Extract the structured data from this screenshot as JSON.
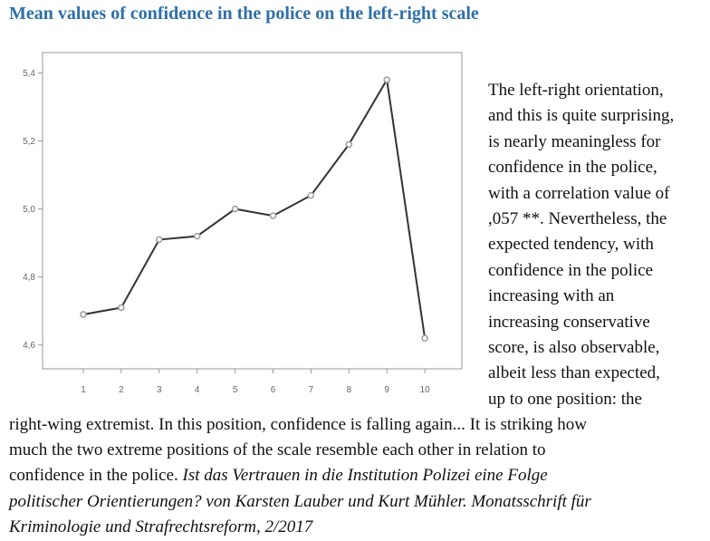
{
  "title": "Mean values of confidence in the police on the left-right scale",
  "chart_data": {
    "type": "line",
    "categories": [
      "1",
      "2",
      "3",
      "4",
      "5",
      "6",
      "7",
      "8",
      "9",
      "10"
    ],
    "values": [
      4.69,
      4.71,
      4.91,
      4.92,
      5.0,
      4.98,
      5.04,
      5.19,
      5.38,
      4.62
    ],
    "yticks": [
      "4,6",
      "4,8",
      "5,0",
      "5,2",
      "5,4"
    ],
    "ytick_values": [
      4.6,
      4.8,
      5.0,
      5.2,
      5.4
    ],
    "ylim": [
      4.53,
      5.46
    ],
    "grid": false,
    "colors": {
      "line": "#333333",
      "marker": "#9a9a9a",
      "frame": "#9a9a9a"
    }
  },
  "text": {
    "side_lines": [
      "The left-right orientation,",
      "and this is quite surprising,",
      "is nearly meaningless for",
      "confidence in the police,",
      "with a correlation value of",
      ",057 **. Nevertheless, the",
      "expected tendency, with",
      "confidence in the police",
      "increasing with an",
      "increasing conservative",
      "score, is also observable,",
      "albeit less than expected,",
      "up to one position: the"
    ],
    "bottom_lines": [
      "right-wing extremist. In this position, confidence is falling again... It is striking how",
      "much the two extreme positions of the scale resemble each other in relation to"
    ],
    "bottom_last_plain": "confidence in the police. ",
    "citation_first": "Ist das Vertrauen in die Institution Polizei eine Folge",
    "citation_lines": [
      "politischer Orientierungen? von Karsten Lauber und Kurt Mühler. Monatsschrift  für",
      "Kriminologie  und  Strafrechtsreform, 2/2017"
    ]
  },
  "colors": {
    "title": "#2f6fa8"
  }
}
